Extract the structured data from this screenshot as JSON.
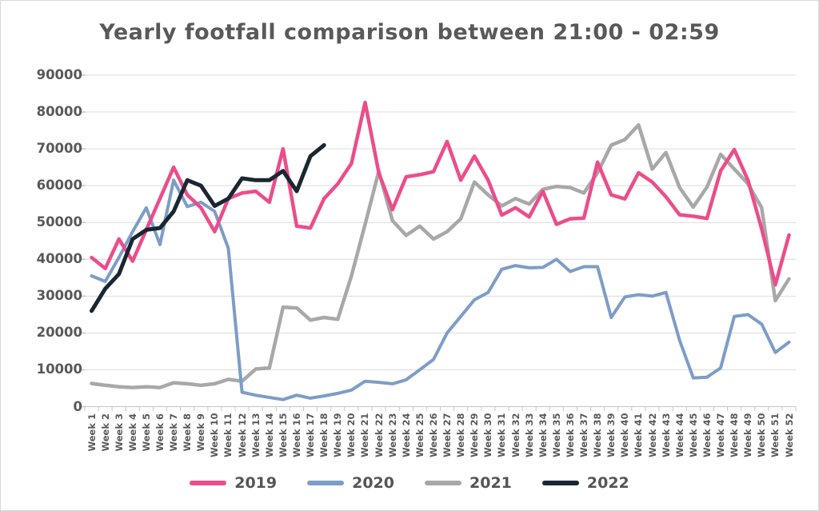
{
  "window": {
    "background": "#ffffff",
    "border_color": "#d8d8d8"
  },
  "title": {
    "text": "Yearly footfall comparison between 21:00 - 02:59",
    "color": "#595959"
  },
  "colors": {
    "series_2019": "#ec4d8a",
    "series_2020": "#7d9dc7",
    "series_2021": "#a8a8a8",
    "series_2022": "#1a2733",
    "text": "#595959",
    "gridline": "#dcdcdc",
    "axis": "#c6c6c6"
  },
  "chart_data": {
    "type": "line",
    "title": "Yearly footfall comparison between 21:00 - 02:59",
    "xlabel": "",
    "ylabel": "",
    "ylim": [
      0,
      90000
    ],
    "ytick_step": 10000,
    "ytick_labels": [
      "0",
      "10000",
      "20000",
      "30000",
      "40000",
      "50000",
      "60000",
      "70000",
      "80000",
      "90000"
    ],
    "grid": "horizontal",
    "legend_position": "bottom",
    "categories": [
      "Week 1",
      "Week 2",
      "Week 3",
      "Week 4",
      "Week 5",
      "Week 6",
      "Week 7",
      "Week 8",
      "Week 9",
      "Week 10",
      "Week 11",
      "Week 12",
      "Week 13",
      "Week 14",
      "Week 15",
      "Week 16",
      "Week 17",
      "Week 18",
      "Week 19",
      "Week 20",
      "Week 21",
      "Week 22",
      "Week 23",
      "Week 24",
      "Week 25",
      "Week 26",
      "Week 27",
      "Week 28",
      "Week 29",
      "Week 30",
      "Week 31",
      "Week 32",
      "Week 33",
      "Week 34",
      "Week 35",
      "Week 36",
      "Week 37",
      "Week 38",
      "Week 39",
      "Week 40",
      "Week 41",
      "Week 42",
      "Week 43",
      "Week 44",
      "Week 45",
      "Week 46",
      "Week 47",
      "Week 48",
      "Week 49",
      "Week 50",
      "Week 51",
      "Week 52"
    ],
    "series": [
      {
        "name": "2019",
        "color": "#ec4d8a",
        "stroke_width": 4.5,
        "values": [
          40500,
          37500,
          45500,
          39500,
          48000,
          56500,
          65000,
          57500,
          54000,
          47500,
          56500,
          58000,
          58500,
          55500,
          70000,
          49000,
          48500,
          56500,
          60500,
          66000,
          82600,
          63500,
          53500,
          62400,
          63000,
          63800,
          72000,
          61500,
          68000,
          61500,
          52000,
          54000,
          51500,
          58500,
          49500,
          51000,
          51200,
          66400,
          57500,
          56400,
          63500,
          61000,
          57000,
          52100,
          51700,
          51100,
          64000,
          69800,
          61500,
          48300,
          33100,
          46600
        ]
      },
      {
        "name": "2020",
        "color": "#7d9dc7",
        "stroke_width": 4,
        "values": [
          35500,
          34000,
          40500,
          47500,
          54000,
          44000,
          61500,
          54300,
          55500,
          53000,
          43000,
          3900,
          3100,
          2500,
          1900,
          3100,
          2300,
          2900,
          3600,
          4500,
          6900,
          6600,
          6200,
          7300,
          10000,
          12800,
          20000,
          24500,
          29000,
          31000,
          37300,
          38300,
          37700,
          37800,
          40000,
          36700,
          38000,
          38000,
          24200,
          29800,
          30400,
          30000,
          31000,
          18000,
          7800,
          8000,
          10500,
          24500,
          25000,
          22400,
          14700,
          17500
        ]
      },
      {
        "name": "2021",
        "color": "#a8a8a8",
        "stroke_width": 4.5,
        "values": [
          6300,
          5800,
          5400,
          5200,
          5400,
          5200,
          6500,
          6200,
          5800,
          6200,
          7400,
          6900,
          10200,
          10500,
          27000,
          26800,
          23500,
          24200,
          23700,
          35500,
          49500,
          63900,
          50500,
          46500,
          49000,
          45500,
          47500,
          51000,
          61000,
          57500,
          54500,
          56500,
          55000,
          59000,
          59800,
          59500,
          58000,
          63500,
          71000,
          72500,
          76500,
          64500,
          69000,
          59500,
          54200,
          59600,
          68500,
          64500,
          60500,
          54000,
          28800,
          34700
        ]
      },
      {
        "name": "2022",
        "color": "#1a2733",
        "stroke_width": 5,
        "values": [
          26000,
          32000,
          36000,
          45500,
          48000,
          48500,
          53000,
          61500,
          60000,
          54500,
          56500,
          62000,
          61500,
          61500,
          64000,
          58500,
          68000,
          71000
        ]
      }
    ]
  },
  "legend": {
    "items": [
      {
        "label": "2019"
      },
      {
        "label": "2020"
      },
      {
        "label": "2021"
      },
      {
        "label": "2022"
      }
    ]
  }
}
